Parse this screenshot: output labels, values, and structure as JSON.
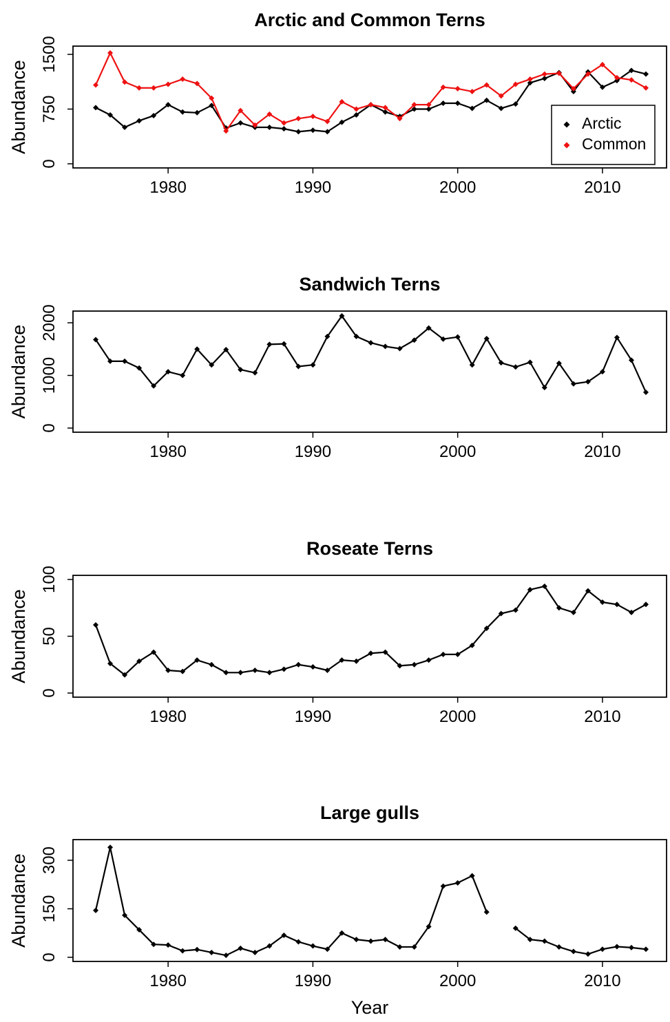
{
  "chart_data": [
    {
      "type": "line",
      "title": "Arctic and Common Terns",
      "ylabel": "Abundance",
      "xlabel": "",
      "xlim": [
        1975,
        2013
      ],
      "ylim": [
        0,
        1500
      ],
      "xticks": [
        1980,
        1990,
        2000,
        2010
      ],
      "yticks": [
        0,
        750,
        1500
      ],
      "legend": {
        "placement": "bottom-right"
      },
      "x": [
        1975,
        1976,
        1977,
        1978,
        1979,
        1980,
        1981,
        1982,
        1983,
        1984,
        1985,
        1986,
        1987,
        1988,
        1989,
        1990,
        1991,
        1992,
        1993,
        1994,
        1995,
        1996,
        1997,
        1998,
        1999,
        2000,
        2001,
        2002,
        2003,
        2004,
        2005,
        2006,
        2007,
        2008,
        2009,
        2010,
        2011,
        2012,
        2013
      ],
      "series": [
        {
          "name": "Arctic",
          "color": "#000000",
          "values": [
            770,
            670,
            500,
            590,
            660,
            810,
            710,
            700,
            800,
            490,
            560,
            500,
            500,
            480,
            440,
            460,
            440,
            570,
            670,
            810,
            710,
            650,
            750,
            750,
            830,
            830,
            760,
            870,
            760,
            820,
            1110,
            1170,
            1250,
            990,
            1260,
            1050,
            1140,
            1280,
            1230
          ]
        },
        {
          "name": "Common",
          "color": "#ee1111",
          "values": [
            1080,
            1520,
            1120,
            1040,
            1040,
            1090,
            1160,
            1100,
            900,
            450,
            730,
            530,
            680,
            560,
            620,
            650,
            580,
            850,
            750,
            810,
            770,
            620,
            810,
            810,
            1050,
            1030,
            990,
            1080,
            930,
            1090,
            1160,
            1230,
            1240,
            1030,
            1230,
            1360,
            1180,
            1150,
            1040
          ]
        }
      ]
    },
    {
      "type": "line",
      "title": "Sandwich Terns",
      "ylabel": "Abundance",
      "xlabel": "",
      "xlim": [
        1975,
        2013
      ],
      "ylim": [
        0,
        2000
      ],
      "xticks": [
        1980,
        1990,
        2000,
        2010
      ],
      "yticks": [
        0,
        1000,
        2000
      ],
      "x": [
        1975,
        1976,
        1977,
        1978,
        1979,
        1980,
        1981,
        1982,
        1983,
        1984,
        1985,
        1986,
        1987,
        1988,
        1989,
        1990,
        1991,
        1992,
        1993,
        1994,
        1995,
        1996,
        1997,
        1998,
        1999,
        2000,
        2001,
        2002,
        2003,
        2004,
        2005,
        2006,
        2007,
        2008,
        2009,
        2010,
        2011,
        2012,
        2013
      ],
      "series": [
        {
          "name": "",
          "color": "#000000",
          "values": [
            1680,
            1270,
            1270,
            1140,
            800,
            1070,
            1000,
            1500,
            1200,
            1490,
            1110,
            1050,
            1590,
            1600,
            1170,
            1200,
            1740,
            2130,
            1740,
            1620,
            1550,
            1510,
            1670,
            1900,
            1690,
            1730,
            1200,
            1700,
            1240,
            1160,
            1250,
            770,
            1230,
            840,
            880,
            1070,
            1720,
            1290,
            680
          ]
        }
      ]
    },
    {
      "type": "line",
      "title": "Roseate Terns",
      "ylabel": "Abundance",
      "xlabel": "",
      "xlim": [
        1975,
        2013
      ],
      "ylim": [
        0,
        100
      ],
      "xticks": [
        1980,
        1990,
        2000,
        2010
      ],
      "yticks": [
        0,
        50,
        100
      ],
      "x": [
        1975,
        1976,
        1977,
        1978,
        1979,
        1980,
        1981,
        1982,
        1983,
        1984,
        1985,
        1986,
        1987,
        1988,
        1989,
        1990,
        1991,
        1992,
        1993,
        1994,
        1995,
        1996,
        1997,
        1998,
        1999,
        2000,
        2001,
        2002,
        2003,
        2004,
        2005,
        2006,
        2007,
        2008,
        2009,
        2010,
        2011,
        2012,
        2013
      ],
      "series": [
        {
          "name": "",
          "color": "#000000",
          "values": [
            60,
            26,
            16,
            28,
            36,
            20,
            19,
            29,
            25,
            18,
            18,
            20,
            18,
            21,
            25,
            23,
            20,
            29,
            28,
            35,
            36,
            24,
            25,
            29,
            34,
            34,
            42,
            57,
            70,
            73,
            91,
            94,
            75,
            71,
            90,
            80,
            78,
            71,
            78
          ]
        }
      ]
    },
    {
      "type": "line",
      "title": "Large gulls",
      "ylabel": "Abundance",
      "xlabel": "Year",
      "xlim": [
        1975,
        2013
      ],
      "ylim": [
        0,
        300
      ],
      "xticks": [
        1980,
        1990,
        2000,
        2010
      ],
      "yticks": [
        0,
        150,
        300
      ],
      "x": [
        1975,
        1976,
        1977,
        1978,
        1979,
        1980,
        1981,
        1982,
        1983,
        1984,
        1985,
        1986,
        1987,
        1988,
        1989,
        1990,
        1991,
        1992,
        1993,
        1994,
        1995,
        1996,
        1997,
        1998,
        1999,
        2000,
        2001,
        2002,
        2003,
        2004,
        2005,
        2006,
        2007,
        2008,
        2009,
        2010,
        2011,
        2012,
        2013
      ],
      "series": [
        {
          "name": "",
          "color": "#000000",
          "values": [
            145,
            340,
            130,
            85,
            40,
            38,
            20,
            24,
            15,
            6,
            28,
            15,
            35,
            68,
            48,
            35,
            25,
            75,
            55,
            50,
            55,
            32,
            32,
            95,
            220,
            230,
            252,
            140,
            null,
            90,
            55,
            50,
            32,
            18,
            10,
            25,
            33,
            30,
            25
          ]
        }
      ]
    }
  ]
}
